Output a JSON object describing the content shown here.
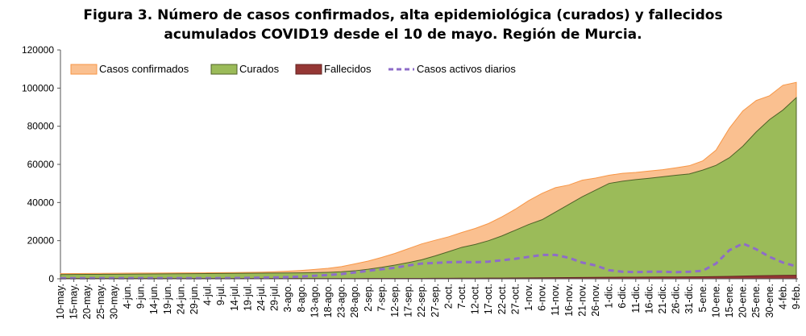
{
  "chart_data": {
    "type": "area",
    "title": "Figura 3. Número de casos confirmados, alta epidemiológica (curados) y fallecidos",
    "subtitle": "acumulados COVID19 desde el 10 de mayo. Región de Murcia.",
    "xlabel": "",
    "ylabel": "",
    "ylim": [
      0,
      120000
    ],
    "yticks": [
      "0",
      "20000",
      "40000",
      "60000",
      "80000",
      "100000",
      "120000"
    ],
    "grid": false,
    "legend_position": "top-left",
    "categories": [
      "10-may.",
      "15-may.",
      "20-may.",
      "25-may.",
      "30-may.",
      "4-jun.",
      "9-jun.",
      "14-jun.",
      "19-jun.",
      "24-jun.",
      "29-jun.",
      "4-jul.",
      "9-jul.",
      "14-jul.",
      "19-jul.",
      "24-jul.",
      "29-jul.",
      "3-ago.",
      "8-ago.",
      "13-ago.",
      "18-ago.",
      "23-ago.",
      "28-ago.",
      "2-sep.",
      "7-sep.",
      "12-sep.",
      "17-sep.",
      "22-sep.",
      "27-sep.",
      "2-oct.",
      "7-oct.",
      "12-oct.",
      "17-oct.",
      "22-oct.",
      "27-oct.",
      "1-nov.",
      "6-nov.",
      "11-nov.",
      "16-nov.",
      "21-nov.",
      "26-nov.",
      "1-dic.",
      "6-dic.",
      "11-dic.",
      "16-dic.",
      "21-dic.",
      "26-dic.",
      "31-dic.",
      "5-ene.",
      "10-ene.",
      "15-ene.",
      "20-ene.",
      "25-ene.",
      "30-ene.",
      "4-feb.",
      "9-feb."
    ],
    "series": [
      {
        "name": "Casos confirmados",
        "kind": "area",
        "color": "#FAC090",
        "stroke": "#F79646",
        "values": [
          2700,
          2750,
          2800,
          2850,
          2900,
          2950,
          3000,
          3000,
          3050,
          3100,
          3100,
          3150,
          3200,
          3300,
          3400,
          3500,
          3700,
          4000,
          4400,
          4900,
          5500,
          6400,
          7800,
          9300,
          11200,
          13300,
          15800,
          18300,
          20200,
          22000,
          24300,
          26400,
          29000,
          32500,
          36500,
          41000,
          44800,
          47800,
          49200,
          51700,
          52800,
          54300,
          55300,
          55800,
          56500,
          57200,
          58200,
          59300,
          61800,
          67500,
          79000,
          88000,
          93500,
          96000,
          101500,
          103000
        ]
      },
      {
        "name": "Curados",
        "kind": "area",
        "color": "#9BBB59",
        "stroke": "#4F6228",
        "values": [
          2200,
          2250,
          2300,
          2350,
          2400,
          2450,
          2500,
          2550,
          2600,
          2650,
          2700,
          2750,
          2800,
          2850,
          2900,
          2950,
          3000,
          3050,
          3100,
          3200,
          3400,
          3700,
          4200,
          5000,
          6000,
          7200,
          8500,
          10000,
          12000,
          14200,
          16500,
          18000,
          20000,
          22500,
          25500,
          28500,
          31000,
          35000,
          39000,
          43000,
          46500,
          50000,
          51200,
          52000,
          52700,
          53500,
          54300,
          55000,
          57000,
          59500,
          63500,
          69500,
          77000,
          83500,
          88500,
          95000
        ]
      },
      {
        "name": "Fallecidos",
        "kind": "area",
        "color": "#953735",
        "stroke": "#632523",
        "values": [
          140,
          140,
          145,
          145,
          145,
          148,
          148,
          148,
          148,
          148,
          148,
          148,
          148,
          150,
          150,
          150,
          150,
          152,
          155,
          160,
          165,
          170,
          175,
          185,
          195,
          205,
          215,
          230,
          245,
          265,
          290,
          320,
          350,
          390,
          430,
          480,
          530,
          590,
          650,
          710,
          760,
          800,
          840,
          870,
          900,
          930,
          960,
          1000,
          1060,
          1150,
          1280,
          1420,
          1560,
          1680,
          1780,
          1850
        ]
      },
      {
        "name": "Casos activos diarios",
        "kind": "line",
        "color": "#8E6CC8",
        "dashed": true,
        "values": [
          300,
          300,
          300,
          300,
          300,
          300,
          300,
          300,
          300,
          300,
          300,
          300,
          350,
          400,
          500,
          600,
          700,
          900,
          1200,
          1600,
          2000,
          2500,
          3300,
          4200,
          5000,
          5800,
          7000,
          8000,
          8300,
          8700,
          8800,
          8700,
          9000,
          9700,
          10500,
          11500,
          12500,
          12500,
          11000,
          8500,
          7000,
          4500,
          3700,
          3500,
          3700,
          3700,
          3500,
          3700,
          4200,
          8000,
          15000,
          18500,
          15500,
          11500,
          8500,
          6500
        ]
      }
    ]
  }
}
